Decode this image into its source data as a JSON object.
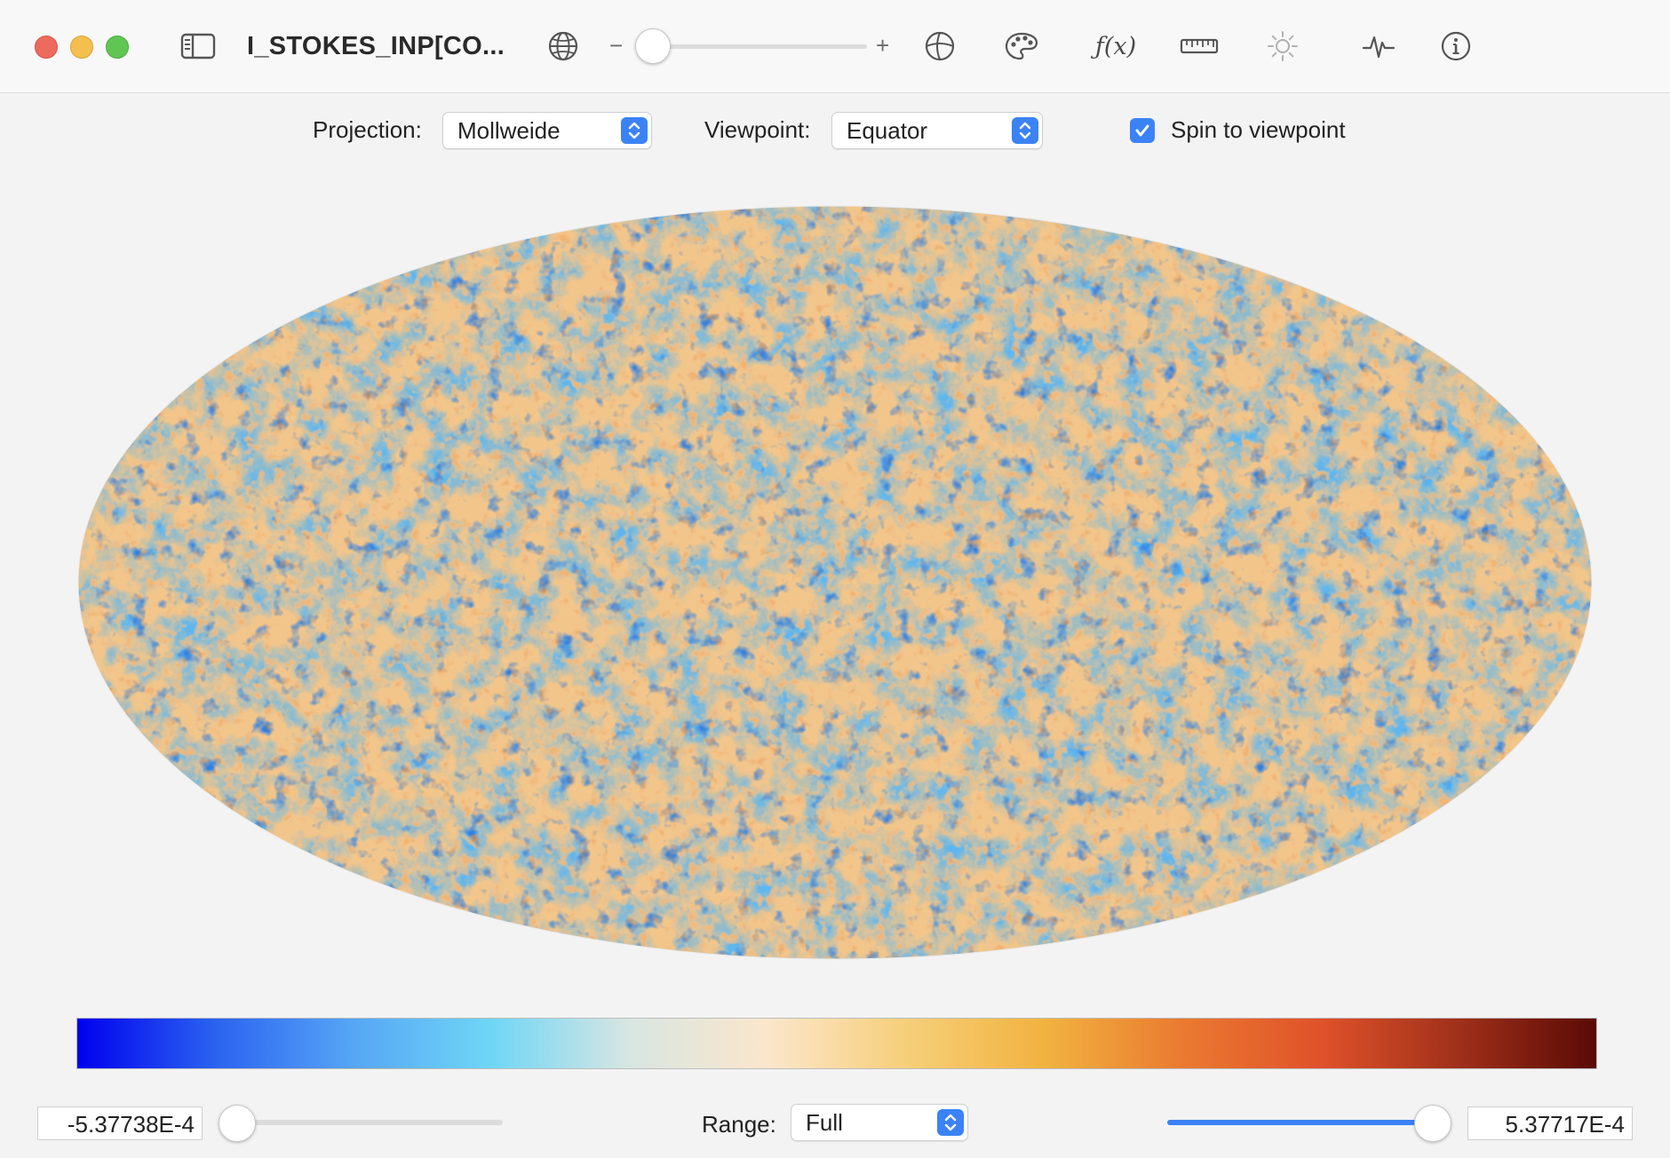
{
  "toolbar": {
    "title": "I_STOKES_INP[CO...",
    "zoom_minus": "−",
    "zoom_plus": "+",
    "fx_label": "ƒ(x)",
    "icons": [
      "sidebar-icon",
      "globe-icon",
      "sphere-icon",
      "palette-icon",
      "function-icon",
      "ruler-icon",
      "brightness-icon",
      "waveform-icon",
      "info-icon"
    ]
  },
  "controls": {
    "projection_label": "Projection:",
    "projection_value": "Mollweide",
    "viewpoint_label": "Viewpoint:",
    "viewpoint_value": "Equator",
    "spin_label": "Spin to viewpoint",
    "spin_checked": true
  },
  "colorbar": {
    "stops": [
      "#0000ee",
      "#2b63f0",
      "#56a6f5",
      "#6fd6f6",
      "#d8e6e2",
      "#fbe6cc",
      "#f6cf7a",
      "#f1b340",
      "#ea7a30",
      "#e0522a",
      "#a0301a",
      "#5a0a05"
    ]
  },
  "bottom": {
    "min_value": "-5.37738E-4",
    "max_value": "5.37717E-4",
    "range_label": "Range:",
    "range_value": "Full",
    "min_slider_fraction": 0.0,
    "max_slider_fraction": 1.0
  },
  "colors": {
    "accent": "#3b82f6",
    "map_cold": "#2f7fe6",
    "map_warm": "#f0a640"
  }
}
